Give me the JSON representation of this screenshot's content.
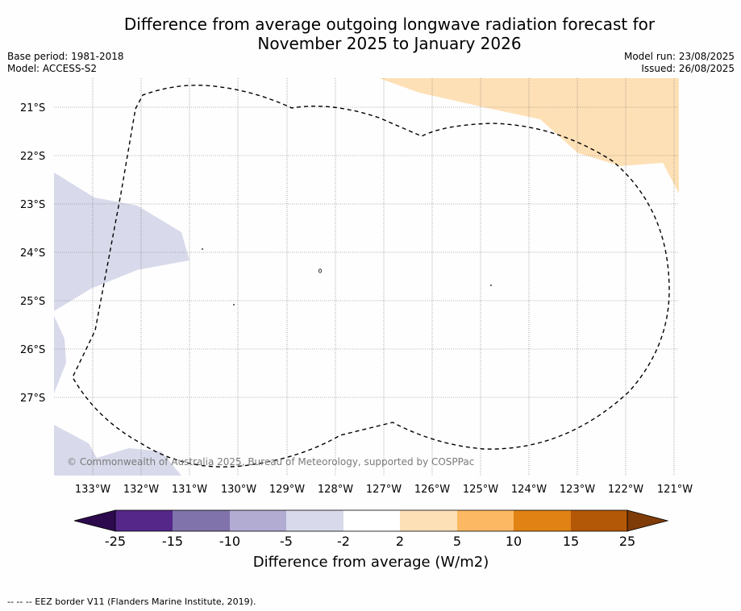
{
  "title": {
    "line1": "Difference from average outgoing longwave radiation forecast for",
    "line2": "November 2025 to January 2026"
  },
  "meta": {
    "base_period": "Base period: 1981-2018",
    "model": "Model: ACCESS-S2",
    "model_run": "Model run: 23/08/2025",
    "issued": "Issued: 26/08/2025"
  },
  "map": {
    "lat_labels": [
      "21°S",
      "22°S",
      "23°S",
      "24°S",
      "25°S",
      "26°S",
      "27°S"
    ],
    "lon_labels": [
      "133°W",
      "132°W",
      "131°W",
      "130°W",
      "129°W",
      "128°W",
      "127°W",
      "126°W",
      "125°W",
      "124°W",
      "123°W",
      "122°W",
      "121°W"
    ],
    "copyright": "© Commonwealth of Australia 2025, Bureau of Meteorology, supported by COSPPac",
    "regions": [
      {
        "name": "negative-anomaly-west",
        "category": "-5 to -2"
      },
      {
        "name": "positive-anomaly-northeast",
        "category": "2 to 5"
      }
    ],
    "boundary": "EEZ border (dashed)"
  },
  "colorbar": {
    "title": "Difference from average (W/m2)",
    "ticks": [
      "-25",
      "-15",
      "-10",
      "-5",
      "-2",
      "2",
      "5",
      "10",
      "15",
      "25"
    ],
    "under_color": "#2d0a4e",
    "over_color": "#7f3b08",
    "colors": [
      "#542788",
      "#8073ac",
      "#b2abd2",
      "#d8daeb",
      "#ffffff",
      "#fee0b6",
      "#fdb863",
      "#e08214",
      "#b35806"
    ]
  },
  "footer": "--  --  -- EEZ border V11 (Flanders Marine Institute, 2019)."
}
